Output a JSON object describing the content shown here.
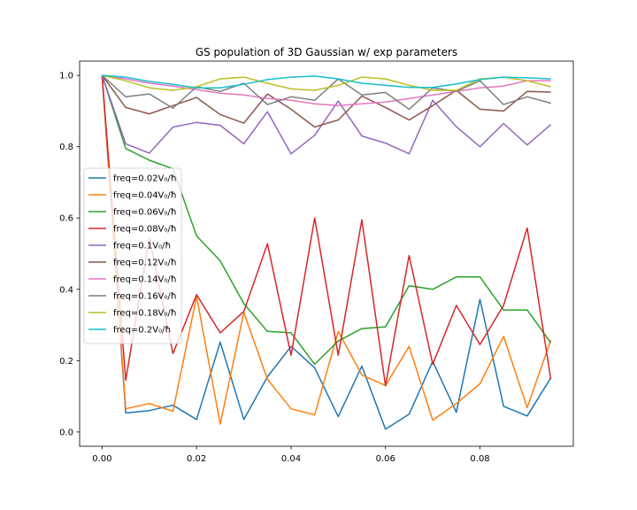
{
  "chart_data": {
    "type": "line",
    "title": "GS population of 3D Gaussian w/ exp parameters",
    "xlabel": "",
    "ylabel": "",
    "xlim": [
      -0.00475,
      0.09975
    ],
    "ylim": [
      -0.04,
      1.04
    ],
    "x_ticks": [
      {
        "value": 0.0,
        "label": "0.00"
      },
      {
        "value": 0.02,
        "label": "0.02"
      },
      {
        "value": 0.04,
        "label": "0.04"
      },
      {
        "value": 0.06,
        "label": "0.06"
      },
      {
        "value": 0.08,
        "label": "0.08"
      }
    ],
    "y_ticks": [
      {
        "value": 0.0,
        "label": "0.0"
      },
      {
        "value": 0.2,
        "label": "0.2"
      },
      {
        "value": 0.4,
        "label": "0.4"
      },
      {
        "value": 0.6,
        "label": "0.6"
      },
      {
        "value": 0.8,
        "label": "0.8"
      },
      {
        "value": 1.0,
        "label": "1.0"
      }
    ],
    "grid": false,
    "legend_position": "center-left",
    "x": [
      0.0,
      0.005,
      0.01,
      0.015,
      0.02,
      0.025,
      0.03,
      0.035,
      0.04,
      0.045,
      0.05,
      0.055,
      0.06,
      0.065,
      0.07,
      0.075,
      0.08,
      0.085,
      0.09,
      0.095
    ],
    "series": [
      {
        "name": "freq=0.02V₀/ħ",
        "color": "#1f77b4",
        "values": [
          1.0,
          0.053,
          0.06,
          0.075,
          0.035,
          0.252,
          0.035,
          0.155,
          0.24,
          0.18,
          0.043,
          0.185,
          0.008,
          0.05,
          0.198,
          0.055,
          0.372,
          0.072,
          0.045,
          0.152
        ]
      },
      {
        "name": "freq=0.04V₀/ħ",
        "color": "#ff7f0e",
        "values": [
          1.0,
          0.065,
          0.08,
          0.058,
          0.38,
          0.022,
          0.335,
          0.148,
          0.065,
          0.048,
          0.282,
          0.16,
          0.13,
          0.24,
          0.033,
          0.08,
          0.135,
          0.268,
          0.068,
          0.258
        ]
      },
      {
        "name": "freq=0.06V₀/ħ",
        "color": "#2ca02c",
        "values": [
          1.0,
          0.795,
          0.762,
          0.738,
          0.55,
          0.48,
          0.36,
          0.282,
          0.278,
          0.19,
          0.255,
          0.29,
          0.295,
          0.41,
          0.4,
          0.435,
          0.435,
          0.342,
          0.342,
          0.25
        ]
      },
      {
        "name": "freq=0.08V₀/ħ",
        "color": "#d62728",
        "values": [
          1.0,
          0.145,
          0.545,
          0.22,
          0.385,
          0.278,
          0.338,
          0.528,
          0.215,
          0.6,
          0.215,
          0.595,
          0.13,
          0.495,
          0.19,
          0.355,
          0.245,
          0.355,
          0.572,
          0.148
        ]
      },
      {
        "name": "freq=0.1V₀/ħ",
        "color": "#9467bd",
        "values": [
          1.0,
          0.808,
          0.782,
          0.855,
          0.868,
          0.86,
          0.808,
          0.898,
          0.78,
          0.832,
          0.928,
          0.83,
          0.81,
          0.78,
          0.93,
          0.856,
          0.8,
          0.865,
          0.805,
          0.862
        ]
      },
      {
        "name": "freq=0.12V₀/ħ",
        "color": "#8c564b",
        "values": [
          1.0,
          0.91,
          0.892,
          0.915,
          0.938,
          0.89,
          0.866,
          0.948,
          0.905,
          0.855,
          0.875,
          0.942,
          0.91,
          0.875,
          0.915,
          0.958,
          0.905,
          0.9,
          0.955,
          0.953
        ]
      },
      {
        "name": "freq=0.14V₀/ħ",
        "color": "#e377c2",
        "values": [
          1.0,
          0.99,
          0.978,
          0.97,
          0.96,
          0.95,
          0.945,
          0.935,
          0.93,
          0.92,
          0.915,
          0.92,
          0.925,
          0.935,
          0.945,
          0.955,
          0.965,
          0.97,
          0.985,
          0.985
        ]
      },
      {
        "name": "freq=0.16V₀/ħ",
        "color": "#7f7f7f",
        "values": [
          1.0,
          0.94,
          0.948,
          0.908,
          0.968,
          0.955,
          0.978,
          0.918,
          0.94,
          0.93,
          0.99,
          0.945,
          0.952,
          0.905,
          0.965,
          0.955,
          0.985,
          0.918,
          0.94,
          0.922
        ]
      },
      {
        "name": "freq=0.18V₀/ħ",
        "color": "#bcbd22",
        "values": [
          1.0,
          0.985,
          0.965,
          0.958,
          0.968,
          0.99,
          0.995,
          0.978,
          0.962,
          0.958,
          0.972,
          0.995,
          0.99,
          0.972,
          0.958,
          0.958,
          0.99,
          0.995,
          0.985,
          0.968
        ]
      },
      {
        "name": "freq=0.2V₀/ħ",
        "color": "#17becf",
        "values": [
          1.0,
          0.995,
          0.983,
          0.975,
          0.965,
          0.965,
          0.975,
          0.988,
          0.995,
          0.998,
          0.99,
          0.978,
          0.972,
          0.966,
          0.966,
          0.976,
          0.988,
          0.995,
          0.993,
          0.99
        ]
      }
    ]
  }
}
